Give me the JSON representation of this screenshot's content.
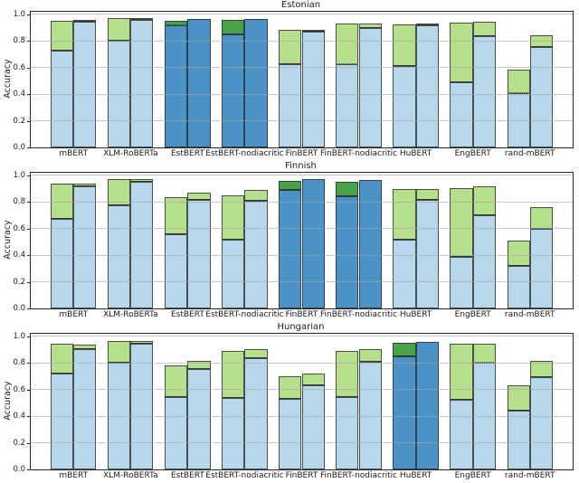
{
  "figure": {
    "kind": "matplotlib-style multi-subplot bar figure",
    "background": "#ffffff",
    "colors": {
      "light_blue": "#b7d7ea",
      "light_green": "#b5df8d",
      "dark_blue": "#4b92c6",
      "dark_green": "#48a347",
      "bar_edge": "rgba(45,45,45,0.8)",
      "boundary_line": "#333333",
      "grid": "rgba(165,165,165,0.6)",
      "frame": "#262626",
      "text": "#1a1a1a"
    }
  },
  "chart_data": [
    {
      "type": "bar",
      "subtype": "paired-stacked-bars",
      "title": "Estonian",
      "xlabel": "",
      "ylabel": "Accuracy",
      "ylim": [
        0,
        1.02
      ],
      "yticks": [
        0.0,
        0.2,
        0.4,
        0.6,
        0.8,
        1.0
      ],
      "grid": true,
      "legend": null,
      "categories": [
        "mBERT",
        "XLM-RoBERTa",
        "EstBERT",
        "EstBERT-nodiacritic",
        "FinBERT",
        "FinBERT-nodiacritic",
        "HuBERT",
        "EngBERT",
        "rand-mBERT"
      ],
      "groups": [
        {
          "model": "mBERT",
          "native": false,
          "left": {
            "base": 0.73,
            "top": 0.955
          },
          "right": {
            "base": 0.945,
            "top": 0.957
          }
        },
        {
          "model": "XLM-RoBERTa",
          "native": false,
          "left": {
            "base": 0.8,
            "top": 0.975
          },
          "right": {
            "base": 0.962,
            "top": 0.972
          }
        },
        {
          "model": "EstBERT",
          "native": true,
          "left": {
            "base": 0.915,
            "top": 0.952,
            "dotted": true
          },
          "right": {
            "base": 0.968,
            "top": 0.968
          }
        },
        {
          "model": "EstBERT-nodiacritic",
          "native": true,
          "left": {
            "base": 0.853,
            "top": 0.957
          },
          "right": {
            "base": 0.963,
            "top": 0.963
          }
        },
        {
          "model": "FinBERT",
          "native": false,
          "left": {
            "base": 0.628,
            "top": 0.883
          },
          "right": {
            "base": 0.868,
            "top": 0.883
          }
        },
        {
          "model": "FinBERT-nodiacritic",
          "native": false,
          "left": {
            "base": 0.623,
            "top": 0.933,
            "dotted": true
          },
          "right": {
            "base": 0.898,
            "top": 0.932
          }
        },
        {
          "model": "HuBERT",
          "native": false,
          "left": {
            "base": 0.61,
            "top": 0.923
          },
          "right": {
            "base": 0.916,
            "top": 0.932
          }
        },
        {
          "model": "EngBERT",
          "native": false,
          "left": {
            "base": 0.49,
            "top": 0.938
          },
          "right": {
            "base": 0.838,
            "top": 0.948
          }
        },
        {
          "model": "rand-mBERT",
          "native": false,
          "left": {
            "base": 0.405,
            "top": 0.585,
            "dotted": true
          },
          "right": {
            "base": 0.758,
            "top": 0.843
          }
        }
      ]
    },
    {
      "type": "bar",
      "subtype": "paired-stacked-bars",
      "title": "Finnish",
      "xlabel": "",
      "ylabel": "Accuracy",
      "ylim": [
        0,
        1.02
      ],
      "yticks": [
        0.0,
        0.2,
        0.4,
        0.6,
        0.8,
        1.0
      ],
      "grid": true,
      "legend": null,
      "categories": [
        "mBERT",
        "XLM-RoBERTa",
        "EstBERT",
        "EstBERT-nodiacritic",
        "FinBERT",
        "FinBERT-nodiacritic",
        "HuBERT",
        "EngBERT",
        "rand-mBERT"
      ],
      "groups": [
        {
          "model": "mBERT",
          "native": false,
          "left": {
            "base": 0.675,
            "top": 0.938
          },
          "right": {
            "base": 0.918,
            "top": 0.938
          }
        },
        {
          "model": "XLM-RoBERTa",
          "native": false,
          "left": {
            "base": 0.775,
            "top": 0.973
          },
          "right": {
            "base": 0.953,
            "top": 0.97
          }
        },
        {
          "model": "EstBERT",
          "native": false,
          "left": {
            "base": 0.558,
            "top": 0.838
          },
          "right": {
            "base": 0.818,
            "top": 0.868
          }
        },
        {
          "model": "EstBERT-nodiacritic",
          "native": false,
          "left": {
            "base": 0.518,
            "top": 0.848
          },
          "right": {
            "base": 0.808,
            "top": 0.888
          }
        },
        {
          "model": "FinBERT",
          "native": true,
          "left": {
            "base": 0.893,
            "top": 0.958
          },
          "right": {
            "base": 0.973,
            "top": 0.973
          }
        },
        {
          "model": "FinBERT-nodiacritic",
          "native": true,
          "left": {
            "base": 0.843,
            "top": 0.953
          },
          "right": {
            "base": 0.968,
            "top": 0.968
          }
        },
        {
          "model": "HuBERT",
          "native": false,
          "left": {
            "base": 0.518,
            "top": 0.898
          },
          "right": {
            "base": 0.818,
            "top": 0.898
          }
        },
        {
          "model": "EngBERT",
          "native": false,
          "left": {
            "base": 0.39,
            "top": 0.903
          },
          "right": {
            "base": 0.7,
            "top": 0.918
          }
        },
        {
          "model": "rand-mBERT",
          "native": false,
          "left": {
            "base": 0.32,
            "top": 0.513
          },
          "right": {
            "base": 0.598,
            "top": 0.763
          }
        }
      ]
    },
    {
      "type": "bar",
      "subtype": "paired-stacked-bars",
      "title": "Hungarian",
      "xlabel": "",
      "ylabel": "Accuracy",
      "ylim": [
        0,
        1.02
      ],
      "yticks": [
        0.0,
        0.2,
        0.4,
        0.6,
        0.8,
        1.0
      ],
      "grid": true,
      "legend": null,
      "categories": [
        "mBERT",
        "XLM-RoBERTa",
        "EstBERT",
        "EstBERT-nodiacritic",
        "FinBERT",
        "FinBERT-nodiacritic",
        "HuBERT",
        "EngBERT",
        "rand-mBERT"
      ],
      "groups": [
        {
          "model": "mBERT",
          "native": false,
          "left": {
            "base": 0.72,
            "top": 0.945
          },
          "right": {
            "base": 0.905,
            "top": 0.937
          }
        },
        {
          "model": "XLM-RoBERTa",
          "native": false,
          "left": {
            "base": 0.805,
            "top": 0.967
          },
          "right": {
            "base": 0.948,
            "top": 0.965
          }
        },
        {
          "model": "EstBERT",
          "native": false,
          "left": {
            "base": 0.545,
            "top": 0.78
          },
          "right": {
            "base": 0.758,
            "top": 0.818
          }
        },
        {
          "model": "EstBERT-nodiacritic",
          "native": false,
          "left": {
            "base": 0.54,
            "top": 0.888
          },
          "right": {
            "base": 0.84,
            "top": 0.908
          }
        },
        {
          "model": "FinBERT",
          "native": false,
          "left": {
            "base": 0.528,
            "top": 0.698
          },
          "right": {
            "base": 0.633,
            "top": 0.718
          }
        },
        {
          "model": "FinBERT-nodiacritic",
          "native": false,
          "left": {
            "base": 0.543,
            "top": 0.888
          },
          "right": {
            "base": 0.81,
            "top": 0.903
          }
        },
        {
          "model": "HuBERT",
          "native": true,
          "left": {
            "base": 0.848,
            "top": 0.955
          },
          "right": {
            "base": 0.958,
            "top": 0.958
          }
        },
        {
          "model": "EngBERT",
          "native": false,
          "left": {
            "base": 0.523,
            "top": 0.943
          },
          "right": {
            "base": 0.8,
            "top": 0.943,
            "dotted": true
          }
        },
        {
          "model": "rand-mBERT",
          "native": false,
          "left": {
            "base": 0.44,
            "top": 0.633
          },
          "right": {
            "base": 0.697,
            "top": 0.813
          }
        }
      ]
    }
  ]
}
